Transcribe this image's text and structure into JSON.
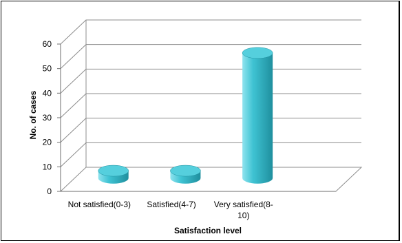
{
  "colors": {
    "bar_light": "#8fe3ee",
    "bar_mid": "#3fc3d3",
    "bar_dark": "#1f8f9e",
    "bar_top": "#55cfdd",
    "gridline": "#8c8c8c",
    "axis": "#6e6e6e"
  },
  "chart_data": {
    "type": "bar",
    "style": "3d-cylinder",
    "title": "",
    "xlabel": "Satisfaction level",
    "ylabel": "No. of cases",
    "ylim": [
      0,
      60
    ],
    "yticks": [
      "0",
      "10",
      "20",
      "30",
      "40",
      "50",
      "60"
    ],
    "categories": [
      "Not satisfied(0-3)",
      "Satisfied(4-7)",
      "Very satisfied(8-10)"
    ],
    "category_label_lines": [
      [
        "Not satisfied(0-3)"
      ],
      [
        "Satisfied(4-7)"
      ],
      [
        "Very satisfied(8-",
        "10)"
      ]
    ],
    "values": [
      3,
      3,
      51
    ],
    "grid": true,
    "legend": "none"
  }
}
